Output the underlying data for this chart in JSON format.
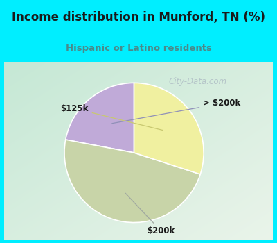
{
  "title": "Income distribution in Munford, TN (%)",
  "subtitle": "Hispanic or Latino residents",
  "slices": [
    {
      "label": "> $200k",
      "value": 22,
      "color": "#c0aad8"
    },
    {
      "label": "$200k",
      "value": 48,
      "color": "#c8d4a8"
    },
    {
      "label": "$125k",
      "value": 30,
      "color": "#f0f0a0"
    }
  ],
  "title_color": "#1a1a1a",
  "subtitle_color": "#4a8a8a",
  "title_bg_color": "#00eeff",
  "label_color": "#1a1a1a",
  "watermark": "City-Data.com",
  "watermark_color": "#b0bec5",
  "start_angle": 90,
  "bg_color_left": "#c8e8d8",
  "bg_color_right": "#e8f0e8",
  "border_color": "#00eeff",
  "border_width": 6
}
